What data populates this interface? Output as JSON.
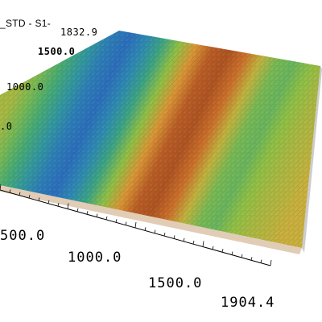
{
  "window": {
    "title_fragment": "_STD - S1-"
  },
  "axes": {
    "z_max_label": "1832.9",
    "z_ticks": [
      "1500.0",
      "1000.0",
      ".0"
    ],
    "x_ticks": [
      "500.0",
      "1000.0",
      "1500.0"
    ],
    "x_max_label": "1904.4"
  },
  "surface": {
    "colormap": [
      "#2a4fc6",
      "#2e8fb0",
      "#3fa878",
      "#8fbf45",
      "#e0a93a",
      "#c86a2a",
      "#a34a1f"
    ],
    "band_profile": [
      0.55,
      0.45,
      0.35,
      0.22,
      0.12,
      0.08,
      0.15,
      0.3,
      0.5,
      0.72,
      0.9,
      0.95,
      0.82,
      0.6,
      0.45,
      0.42,
      0.5,
      0.55,
      0.58,
      0.62
    ]
  }
}
